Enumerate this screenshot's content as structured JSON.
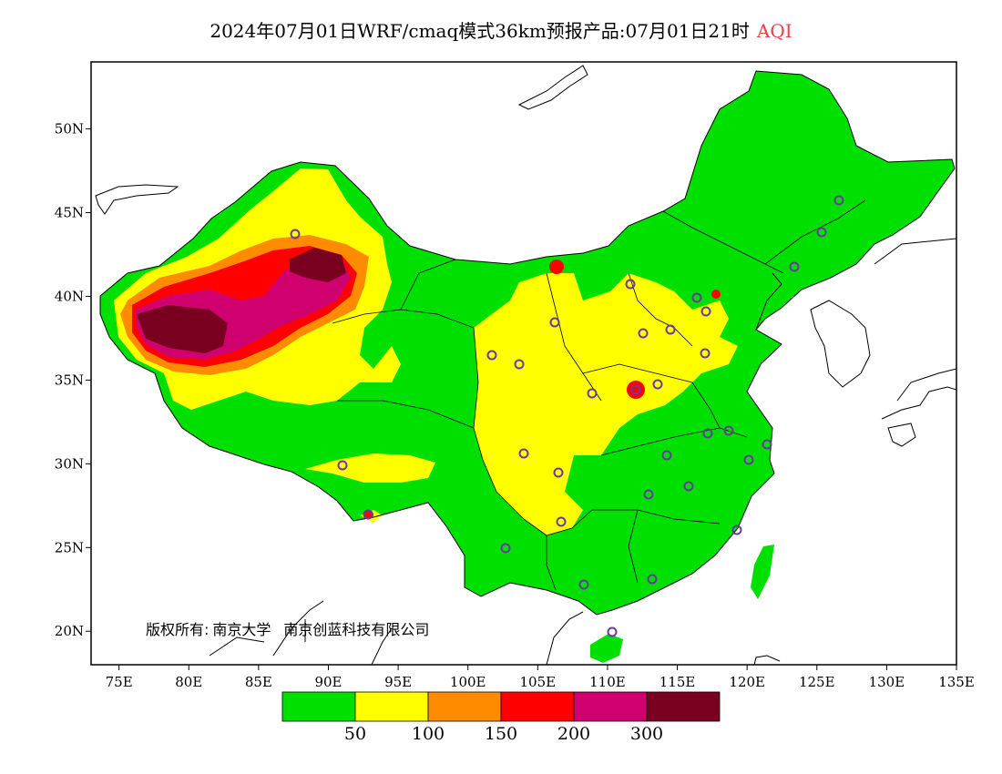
{
  "title": {
    "text": "2024年07月01日WRF/cmaq模式36km预报产品:07月01日21时",
    "variable": "AQI",
    "variable_color": "#e8404a"
  },
  "axes": {
    "lon_ticks": [
      "75E",
      "80E",
      "85E",
      "90E",
      "95E",
      "100E",
      "105E",
      "110E",
      "115E",
      "120E",
      "125E",
      "130E",
      "135E"
    ],
    "lat_ticks": [
      "20N",
      "25N",
      "30N",
      "35N",
      "40N",
      "45N",
      "50N"
    ],
    "lon_range": [
      73,
      135
    ],
    "lat_range": [
      18,
      54
    ]
  },
  "copyright": {
    "prefix": "版权所有:",
    "org1": "南京大学",
    "org2": "南京创蓝科技有限公司"
  },
  "legend": {
    "colors": [
      "#00e000",
      "#ffff00",
      "#ff8c00",
      "#ff0000",
      "#d0006e",
      "#7a0020"
    ],
    "labels": [
      "50",
      "100",
      "150",
      "200",
      "300"
    ]
  },
  "colors": {
    "good": "#00e000",
    "moderate": "#ffff00",
    "usg": "#ff8c00",
    "unhealthy": "#ff0000",
    "very_unhealthy": "#d0006e",
    "hazardous": "#7a0020",
    "station_circle": "#6a3aa0"
  }
}
